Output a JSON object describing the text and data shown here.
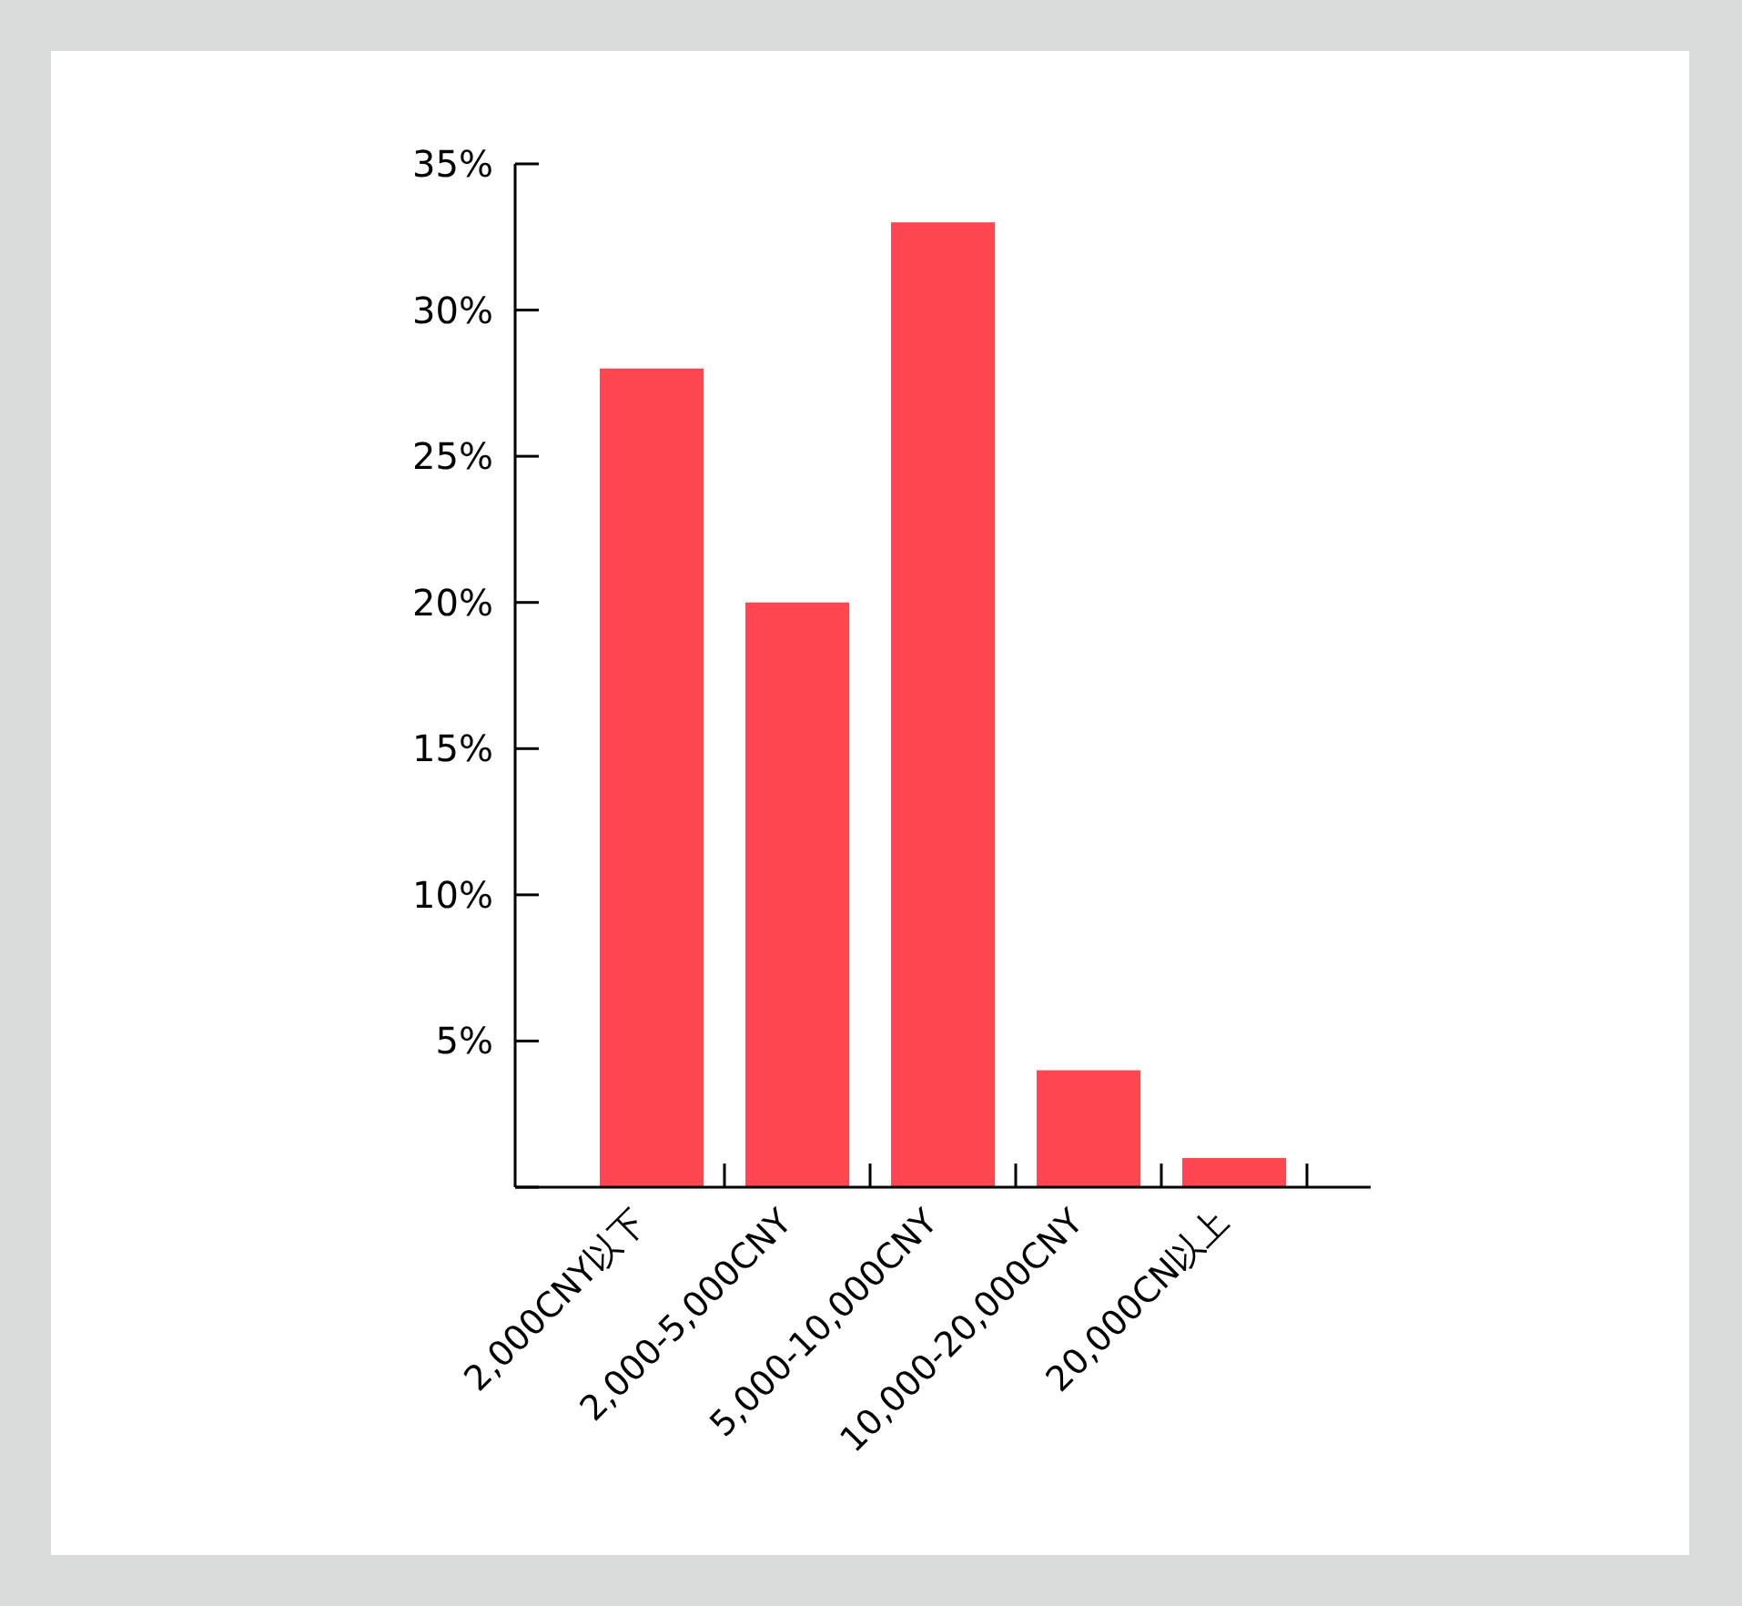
{
  "chart_data": {
    "type": "bar",
    "categories": [
      "2,000CNY以下",
      "2,000-5,000CNY",
      "5,000-10,000CNY",
      "10,000-20,000CNY",
      "20,000CN以上"
    ],
    "values": [
      28,
      20,
      33,
      4,
      1
    ],
    "color": "#fd4650",
    "ylim": [
      0,
      35
    ],
    "yticks": [
      {
        "value": 0,
        "label": null
      },
      {
        "value": 5,
        "label": "5%"
      },
      {
        "value": 10,
        "label": "10%"
      },
      {
        "value": 15,
        "label": "15%"
      },
      {
        "value": 20,
        "label": "20%"
      },
      {
        "value": 25,
        "label": "25%"
      },
      {
        "value": 30,
        "label": "30%"
      },
      {
        "value": 35,
        "label": "35%"
      }
    ],
    "orientation": "vertical"
  }
}
